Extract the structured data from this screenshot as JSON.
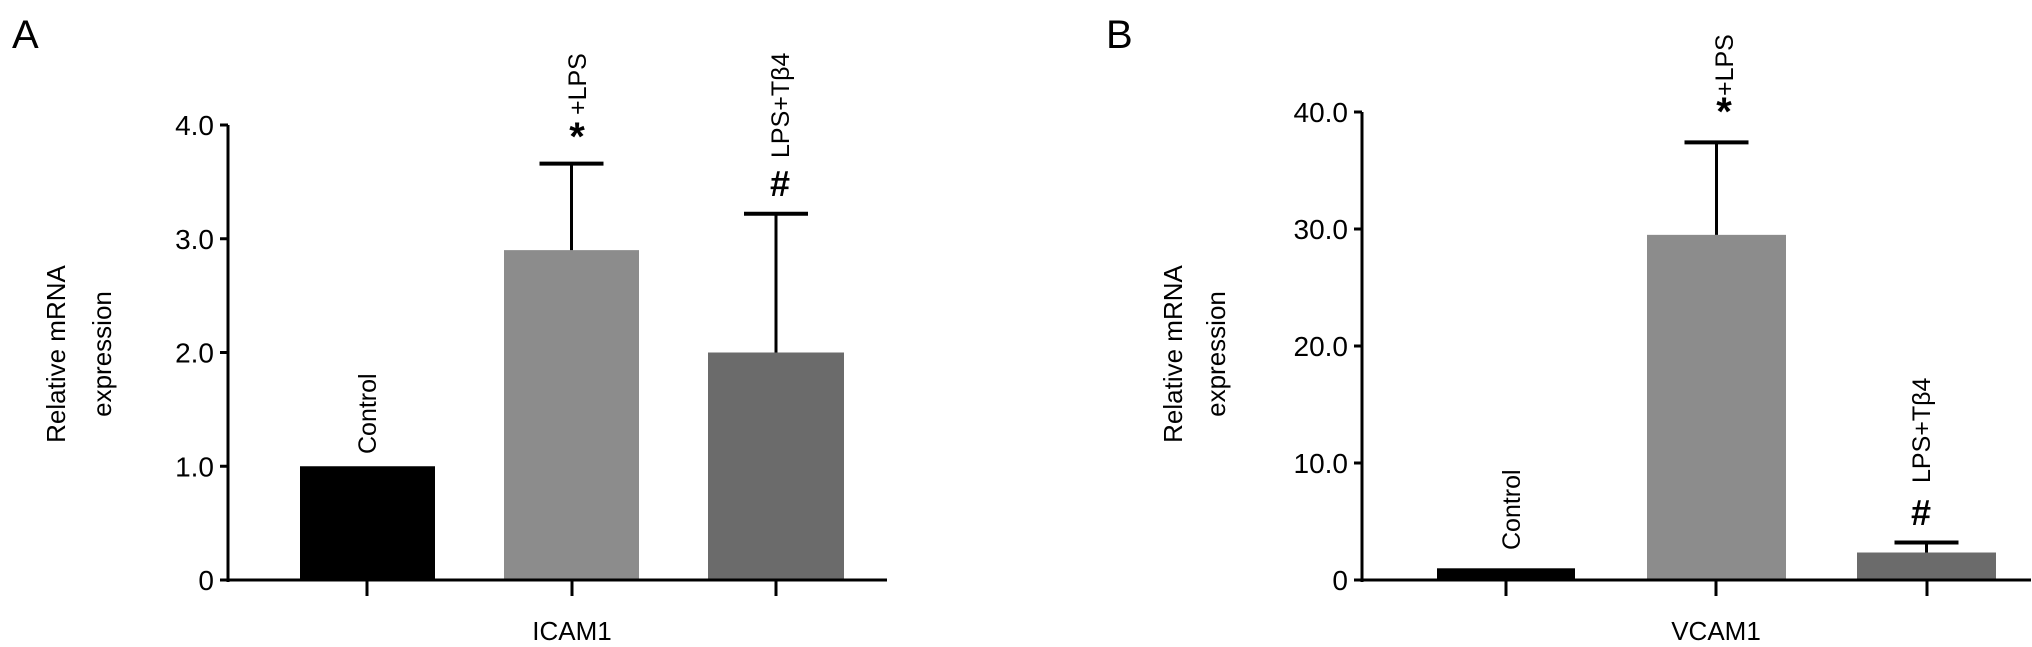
{
  "chart_data": [
    {
      "type": "bar",
      "panel_label": "A",
      "xlabel": "ICAM1",
      "ylabel": [
        "Relative mRNA",
        "expression"
      ],
      "ylim": [
        0,
        4.0
      ],
      "yticks": [
        "0",
        "1.0",
        "2.0",
        "3.0",
        "4.0"
      ],
      "ytick_values": [
        0,
        1,
        2,
        3,
        4
      ],
      "categories": [
        "Control",
        "+LPS",
        "LPS+Tβ4"
      ],
      "values": [
        1.0,
        2.9,
        2.0
      ],
      "error_upper": [
        1.0,
        3.66,
        3.22
      ],
      "annotations": [
        "",
        "*",
        "#"
      ],
      "colors": [
        "#000000",
        "#8c8c8c",
        "#6b6b6b"
      ],
      "grid": false
    },
    {
      "type": "bar",
      "panel_label": "B",
      "xlabel": "VCAM1",
      "ylabel": [
        "Relative mRNA",
        "expression"
      ],
      "ylim": [
        0,
        40.0
      ],
      "yticks": [
        "0",
        "10.0",
        "20.0",
        "30.0",
        "40.0"
      ],
      "ytick_values": [
        0,
        10,
        20,
        30,
        40
      ],
      "categories": [
        "Control",
        "+LPS",
        "LPS+Tβ4"
      ],
      "values": [
        1.0,
        29.5,
        2.35
      ],
      "error_upper": [
        1.0,
        37.4,
        3.2
      ],
      "annotations": [
        "",
        "*",
        "#"
      ],
      "colors": [
        "#000000",
        "#8c8c8c",
        "#6b6b6b"
      ],
      "grid": false
    }
  ]
}
